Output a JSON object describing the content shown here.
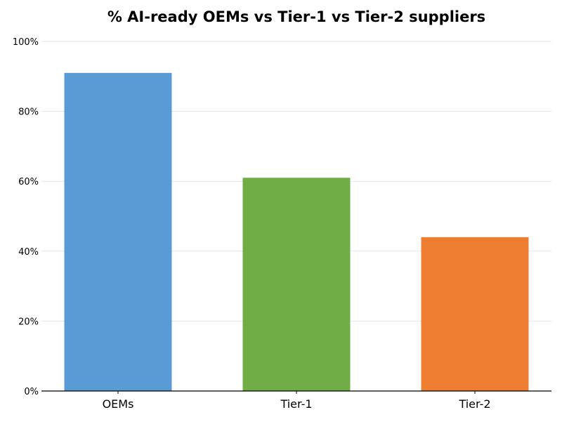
{
  "chart_data": {
    "type": "bar",
    "title": "% AI-ready OEMs vs Tier-1 vs Tier-2 suppliers",
    "xlabel": "",
    "ylabel": "",
    "categories": [
      "OEMs",
      "Tier-1",
      "Tier-2"
    ],
    "values": [
      91,
      61,
      44
    ],
    "colors": [
      "#5b9bd5",
      "#70ad47",
      "#ed7d31"
    ],
    "ylim": [
      0,
      100
    ],
    "yticks": [
      0,
      20,
      40,
      60,
      80,
      100
    ],
    "ytick_labels": [
      "0%",
      "20%",
      "40%",
      "60%",
      "80%",
      "100%"
    ],
    "grid": true,
    "legend": "none"
  }
}
